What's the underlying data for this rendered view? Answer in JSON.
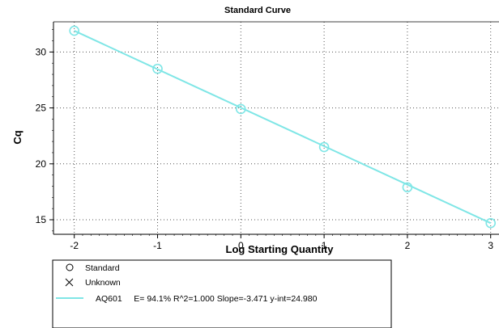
{
  "chart_data": {
    "type": "scatter",
    "title": "Standard Curve",
    "xlabel": "Log Starting Quantity",
    "ylabel": "Cq",
    "xlim": [
      -2.25,
      3.1
    ],
    "ylim": [
      13.7,
      32.7
    ],
    "xticks": [
      "-2",
      "-1",
      "0",
      "1",
      "2",
      "3"
    ],
    "yticks": [
      "15",
      "20",
      "25",
      "30"
    ],
    "grid": true,
    "colors": {
      "series": "#7fe6e6",
      "grid": "#555555",
      "axis": "#000000"
    },
    "series": [
      {
        "name": "AQ601",
        "marker": "circle",
        "x": [
          -2,
          -1,
          0,
          1,
          2,
          3
        ],
        "y": [
          31.9,
          28.5,
          24.9,
          21.5,
          17.9,
          14.7
        ]
      }
    ],
    "fit_line": {
      "slope": -3.471,
      "intercept": 24.98
    },
    "legend": {
      "position": "bottom-left",
      "entries": [
        {
          "symbol": "circle-icon",
          "label": "Standard"
        },
        {
          "symbol": "x-icon",
          "label": "Unknown"
        },
        {
          "symbol": "line-icon",
          "label": "AQ601     E= 94.1% R^2=1.000 Slope=-3.471 y-int=24.980"
        }
      ]
    }
  }
}
